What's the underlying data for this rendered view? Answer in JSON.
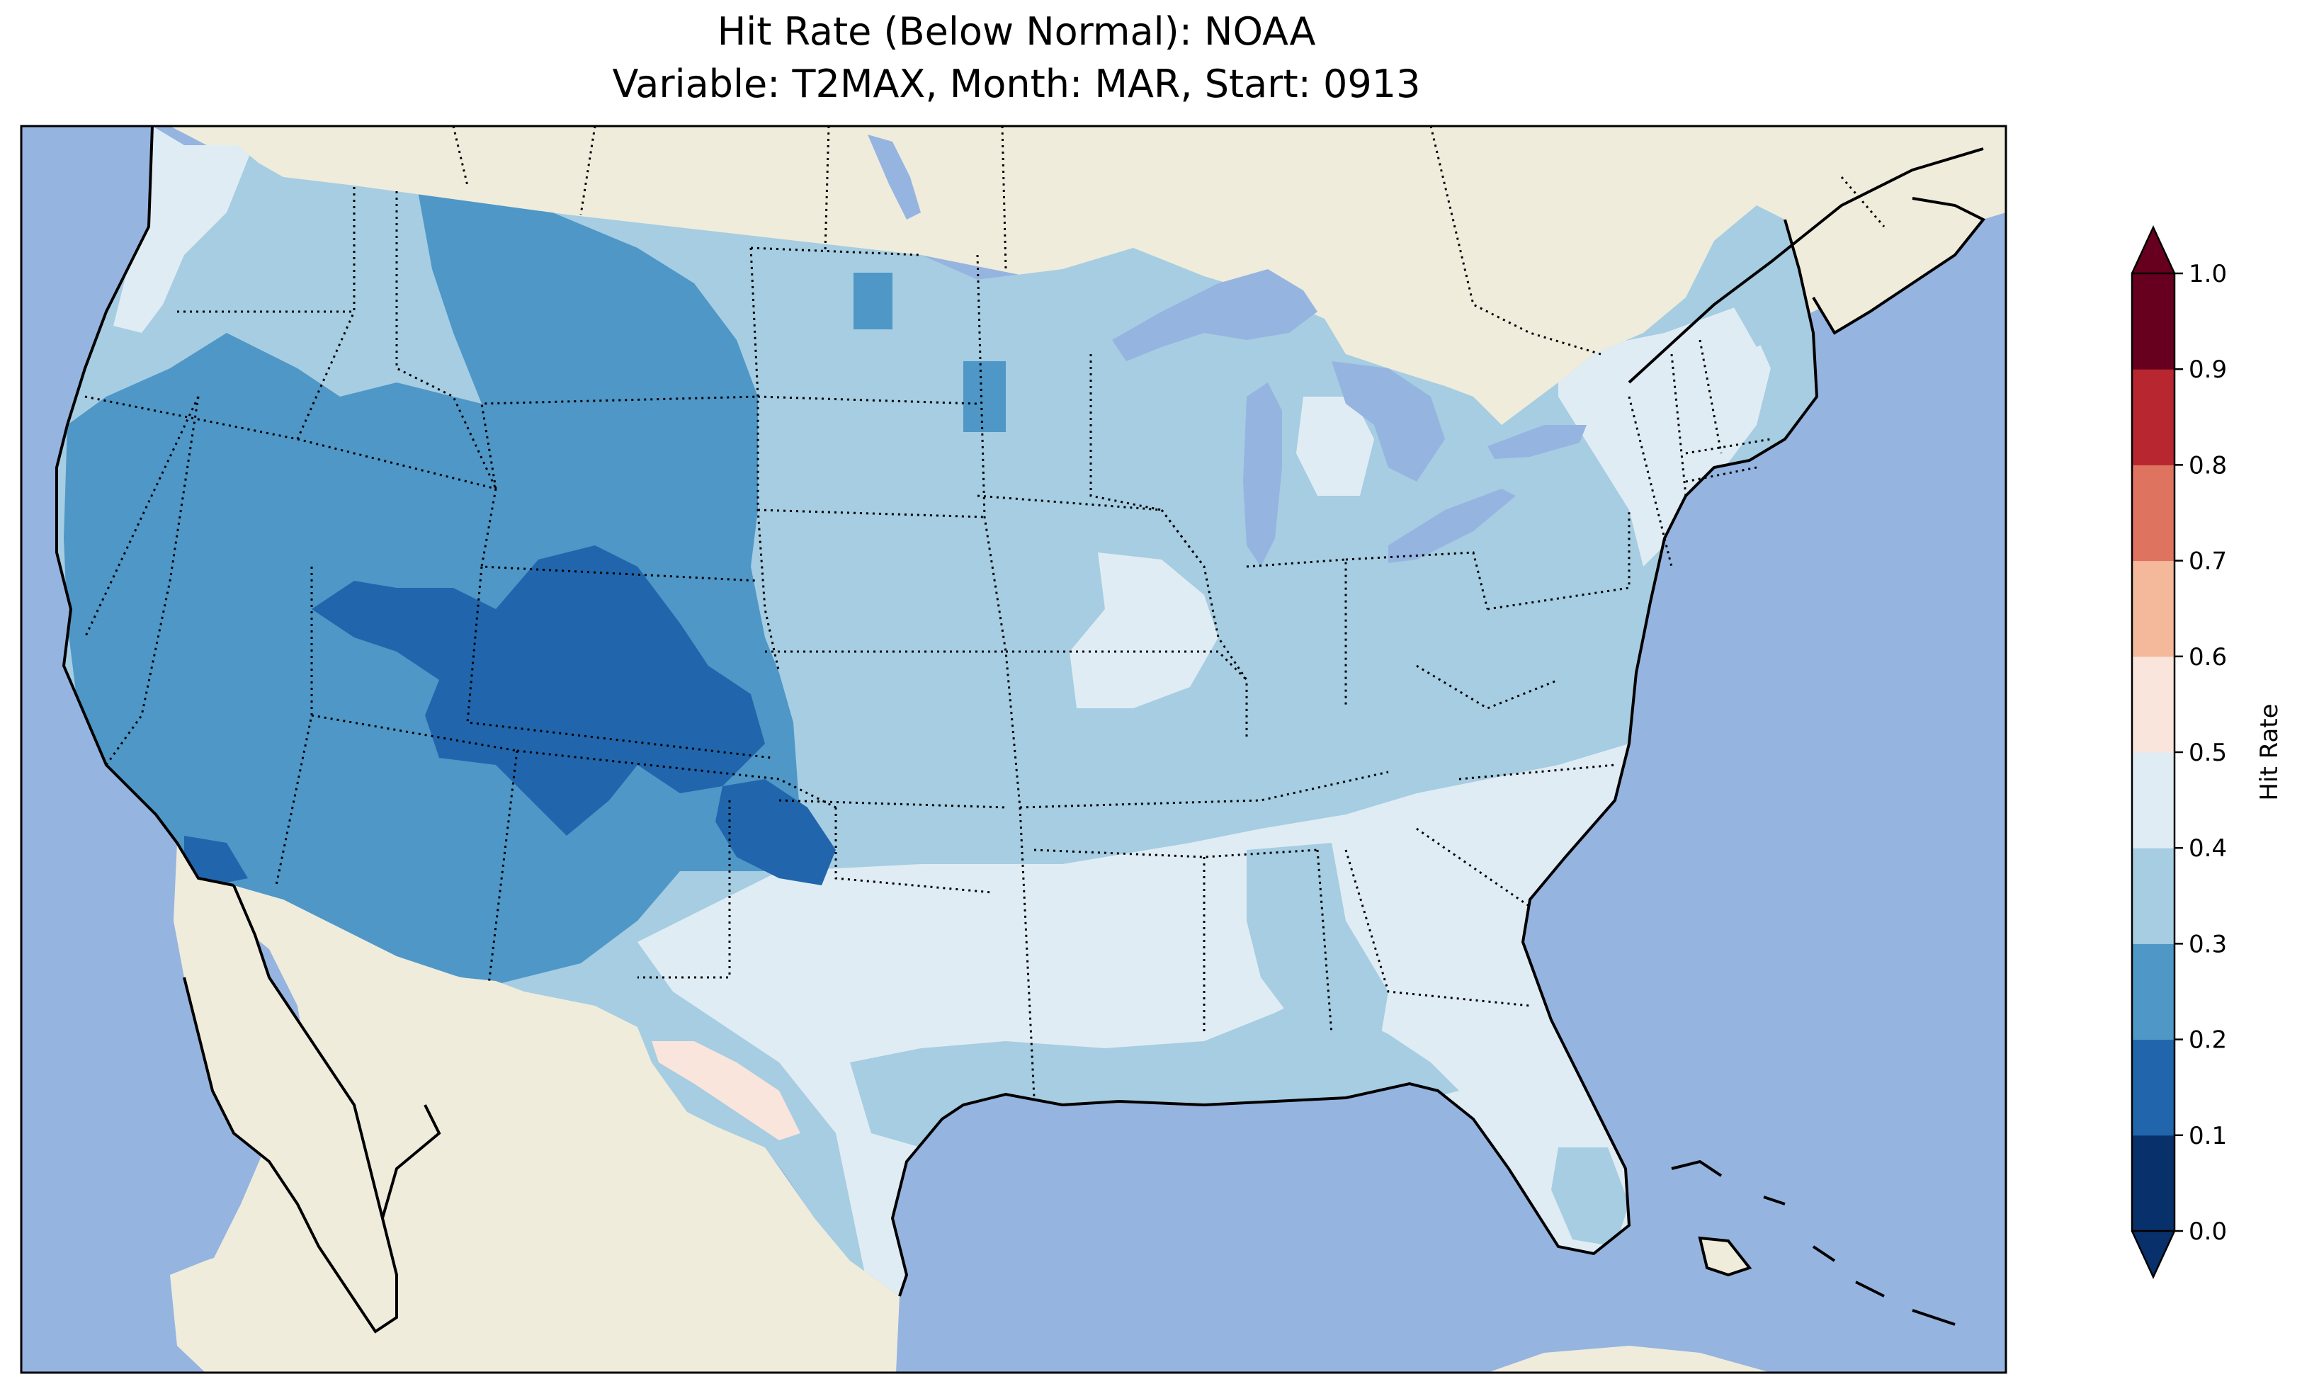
{
  "title": {
    "line1": "Hit Rate (Below Normal): NOAA",
    "line2": "Variable: T2MAX, Month: MAR, Start: 0913"
  },
  "map": {
    "region": "Contiguous United States",
    "ocean_color": "#96b4e0",
    "land_color": "#efecdc",
    "lake_color": "#96b4e0",
    "state_border_style": "dotted",
    "coastline_color": "#000000"
  },
  "colorbar": {
    "label": "Hit Rate",
    "ticks": [
      "0.0",
      "0.1",
      "0.2",
      "0.3",
      "0.4",
      "0.5",
      "0.6",
      "0.7",
      "0.8",
      "0.9",
      "1.0"
    ],
    "bins": [
      {
        "range": [
          0.0,
          0.1
        ],
        "color": "#08306b"
      },
      {
        "range": [
          0.1,
          0.2
        ],
        "color": "#2166ac"
      },
      {
        "range": [
          0.2,
          0.3
        ],
        "color": "#4f97c7"
      },
      {
        "range": [
          0.3,
          0.4
        ],
        "color": "#a6cde2"
      },
      {
        "range": [
          0.4,
          0.5
        ],
        "color": "#e0ecf4"
      },
      {
        "range": [
          0.5,
          0.6
        ],
        "color": "#f9e5dc"
      },
      {
        "range": [
          0.6,
          0.7
        ],
        "color": "#f4b89b"
      },
      {
        "range": [
          0.7,
          0.8
        ],
        "color": "#de735f"
      },
      {
        "range": [
          0.8,
          0.9
        ],
        "color": "#b8262f"
      },
      {
        "range": [
          0.9,
          1.0
        ],
        "color": "#67001f"
      }
    ],
    "extend": "both",
    "under_color": "#08306b",
    "over_color": "#67001f"
  },
  "field_regions": [
    {
      "name": "pacific-northwest",
      "bin": 3
    },
    {
      "name": "northern-rockies-and-plains",
      "bin": 2
    },
    {
      "name": "great-basin-and-california",
      "bin": 2
    },
    {
      "name": "four-corners-core",
      "bin": 1
    },
    {
      "name": "oklahoma-panhandle-core",
      "bin": 1
    },
    {
      "name": "central-plains-and-midwest",
      "bin": 3
    },
    {
      "name": "southern-plains-and-south",
      "bin": 4
    },
    {
      "name": "gulf-coast-strip",
      "bin": 3
    },
    {
      "name": "west-texas-patch",
      "bin": 5
    },
    {
      "name": "new-england",
      "bin": 4
    },
    {
      "name": "maine",
      "bin": 3
    },
    {
      "name": "illinois-patch",
      "bin": 4
    },
    {
      "name": "michigan-patch",
      "bin": 4
    },
    {
      "name": "south-florida",
      "bin": 3
    }
  ]
}
